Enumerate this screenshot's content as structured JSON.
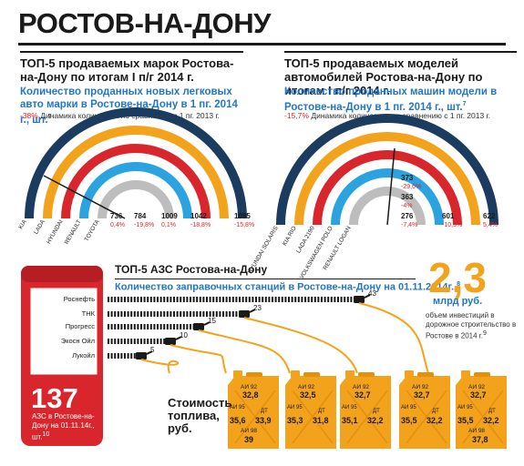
{
  "page": {
    "city": "РОСТОВ-НА-ДОНУ"
  },
  "brands": {
    "title": "ТОП-5 продаваемых марок Ростова-на-Дону по итогам I п/г 2014 г.",
    "subtitle": "Количество проданных новых легковых авто марки в Ростове-на-Дону в 1 пг. 2014 г., шт.",
    "footnote": "7",
    "dynamics_value": "-38%",
    "dynamics_text": "Динамика количества по сравнению с 1 пг. 2013 г."
  },
  "models": {
    "title": "ТОП-5 продаваемых моделей автомобилей Ростова-на-Дону по итогам I п/г 2014 г.",
    "subtitle": "Количество проданных машин модели в Ростове-на-Дону в 1 пг. 2014 г., шт.",
    "footnote": "7",
    "dynamics_value": "-15,7%",
    "dynamics_text": "Динамика количества по сравнению с 1 пг. 2013 г."
  },
  "stations": {
    "title": "ТОП-5 АЗС Ростова-на-Дону",
    "subtitle": "Количество заправочных станций в Ростове-на-Дону на 01.11.2014г.,",
    "footnote": "8",
    "total": "137",
    "total_note": "АЗС в Ростове-на-Дону на 01.11.14г., шт.",
    "total_footnote": "10"
  },
  "investment": {
    "value": "2,3",
    "unit": "млрд руб.",
    "note": "объем инвестиций в дорожное строительство в Ростове в 2014 г.",
    "footnote": "9"
  },
  "fuel": {
    "label": "Стоимость топлива, руб."
  },
  "chart_data": [
    {
      "type": "bar",
      "name": "brands",
      "categories": [
        "KIA",
        "LADA",
        "HYUNDAI",
        "RENAULT",
        "TOYOTA"
      ],
      "values": [
        1095,
        1042,
        1009,
        784,
        736
      ],
      "dynamics": [
        "-15,8%",
        "-18,8%",
        "0,1%",
        "-19,8%",
        "0,4%"
      ],
      "value_labels": [
        "1095",
        "1042",
        "1009",
        "784",
        "736"
      ],
      "colors": [
        "#1b3b5f",
        "#f3a31b",
        "#d8262c",
        "#2aa3e0",
        "#bdbdbd"
      ]
    },
    {
      "type": "bar",
      "name": "models",
      "categories": [
        "HYUNDAI SOLARIS",
        "KIA RIO",
        "LADA 2190",
        "VOLKSWAGEN POLO",
        "RENAULT LOGAN"
      ],
      "values": [
        622,
        601,
        373,
        363,
        276
      ],
      "dynamics": [
        "5,4%",
        "-10,3%",
        "-29,6%",
        "-4%",
        "-7,4%"
      ],
      "value_labels": [
        "622",
        "601",
        "373",
        "363",
        "276"
      ],
      "colors": [
        "#1b3b5f",
        "#f3a31b",
        "#d8262c",
        "#2aa3e0",
        "#bdbdbd"
      ]
    },
    {
      "type": "bar",
      "name": "stations",
      "categories": [
        "Роснефть",
        "ТНК",
        "Прогресс",
        "Экосн Ойл",
        "Лукойл"
      ],
      "values": [
        43,
        23,
        15,
        10,
        5
      ],
      "value_labels": [
        "43",
        "23",
        "15",
        "10",
        "5"
      ]
    },
    {
      "type": "table",
      "name": "fuel_prices",
      "columns": [
        "АИ 92",
        "АИ 95",
        "ДТ",
        "АИ 98"
      ],
      "rows": [
        {
          "values": [
            "32,8",
            "35,6",
            "33,9",
            "39"
          ]
        },
        {
          "values": [
            "32,5",
            "35,3",
            "31,8",
            ""
          ]
        },
        {
          "values": [
            "32,7",
            "35,1",
            "32,2",
            ""
          ]
        },
        {
          "values": [
            "32,7",
            "35,5",
            "32,2",
            ""
          ]
        },
        {
          "values": [
            "32,7",
            "35,5",
            "32,2",
            "37,8"
          ]
        }
      ]
    }
  ]
}
